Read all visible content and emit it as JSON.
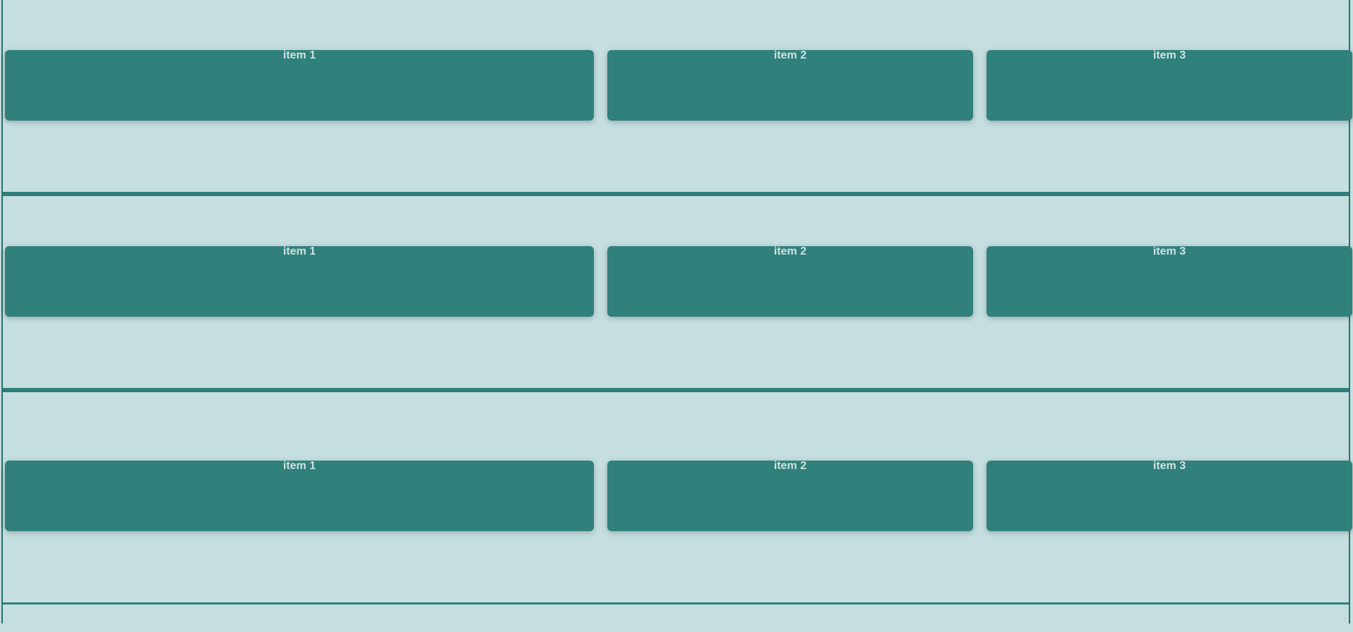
{
  "colors": {
    "background": "#c5dfe0",
    "item": "#30807b",
    "divider": "#2e7f7b",
    "item_text": "#cfe3e2"
  },
  "rows": [
    {
      "items": [
        {
          "label": "item 1"
        },
        {
          "label": "item 2"
        },
        {
          "label": "item 3"
        }
      ]
    },
    {
      "items": [
        {
          "label": "item 1"
        },
        {
          "label": "item 2"
        },
        {
          "label": "item 3"
        }
      ]
    },
    {
      "items": [
        {
          "label": "item 1"
        },
        {
          "label": "item 2"
        },
        {
          "label": "item 3"
        }
      ]
    }
  ]
}
